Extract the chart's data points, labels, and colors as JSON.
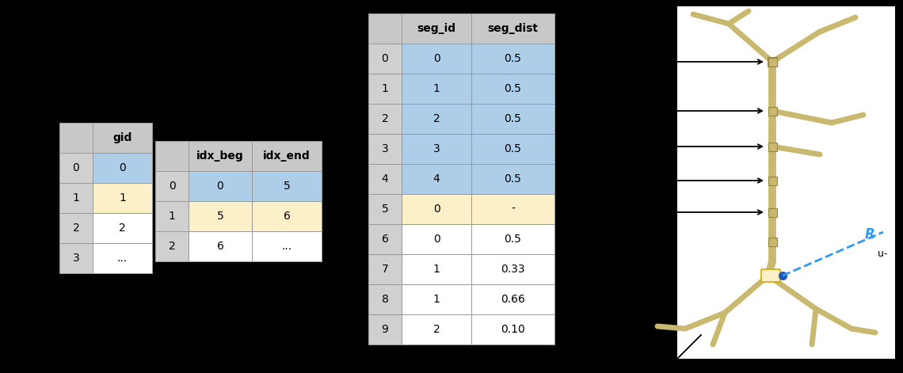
{
  "bg_color": "#000000",
  "table1": {
    "headers": [
      "",
      "gid"
    ],
    "rows": [
      [
        "0",
        "0"
      ],
      [
        "1",
        "1"
      ],
      [
        "2",
        "2"
      ],
      [
        "3",
        "..."
      ]
    ],
    "row_colors": [
      [
        "#d0d0d0",
        "#aecde8"
      ],
      [
        "#d0d0d0",
        "#fdf0c8"
      ],
      [
        "#d0d0d0",
        "#ffffff"
      ],
      [
        "#d0d0d0",
        "#ffffff"
      ]
    ],
    "header_color": "#c8c8c8"
  },
  "table2": {
    "headers": [
      "",
      "idx_beg",
      "idx_end"
    ],
    "rows": [
      [
        "0",
        "0",
        "5"
      ],
      [
        "1",
        "5",
        "6"
      ],
      [
        "2",
        "6",
        "..."
      ]
    ],
    "row_colors": [
      [
        "#d0d0d0",
        "#aecde8",
        "#aecde8"
      ],
      [
        "#d0d0d0",
        "#fdf0c8",
        "#fdf0c8"
      ],
      [
        "#d0d0d0",
        "#ffffff",
        "#ffffff"
      ]
    ],
    "header_color": "#c8c8c8"
  },
  "table3": {
    "headers": [
      "",
      "seg_id",
      "seg_dist"
    ],
    "rows": [
      [
        "0",
        "0",
        "0.5"
      ],
      [
        "1",
        "1",
        "0.5"
      ],
      [
        "2",
        "2",
        "0.5"
      ],
      [
        "3",
        "3",
        "0.5"
      ],
      [
        "4",
        "4",
        "0.5"
      ],
      [
        "5",
        "0",
        "-"
      ],
      [
        "6",
        "0",
        "0.5"
      ],
      [
        "7",
        "1",
        "0.33"
      ],
      [
        "8",
        "1",
        "0.66"
      ],
      [
        "9",
        "2",
        "0.10"
      ]
    ],
    "row_colors": [
      [
        "#d0d0d0",
        "#aecde8",
        "#aecde8"
      ],
      [
        "#d0d0d0",
        "#aecde8",
        "#aecde8"
      ],
      [
        "#d0d0d0",
        "#aecde8",
        "#aecde8"
      ],
      [
        "#d0d0d0",
        "#aecde8",
        "#aecde8"
      ],
      [
        "#d0d0d0",
        "#aecde8",
        "#aecde8"
      ],
      [
        "#d0d0d0",
        "#fdf0c8",
        "#fdf0c8"
      ],
      [
        "#d0d0d0",
        "#ffffff",
        "#ffffff"
      ],
      [
        "#d0d0d0",
        "#ffffff",
        "#ffffff"
      ],
      [
        "#d0d0d0",
        "#ffffff",
        "#ffffff"
      ],
      [
        "#d0d0d0",
        "#ffffff",
        "#ffffff"
      ]
    ],
    "header_color": "#c8c8c8"
  },
  "neuron_color": "#c8b870",
  "highlight_yellow": "#fdf0c8",
  "highlight_blue": "#2255bb",
  "arrow_color": "#000000",
  "dashed_line_color": "#3399ee"
}
